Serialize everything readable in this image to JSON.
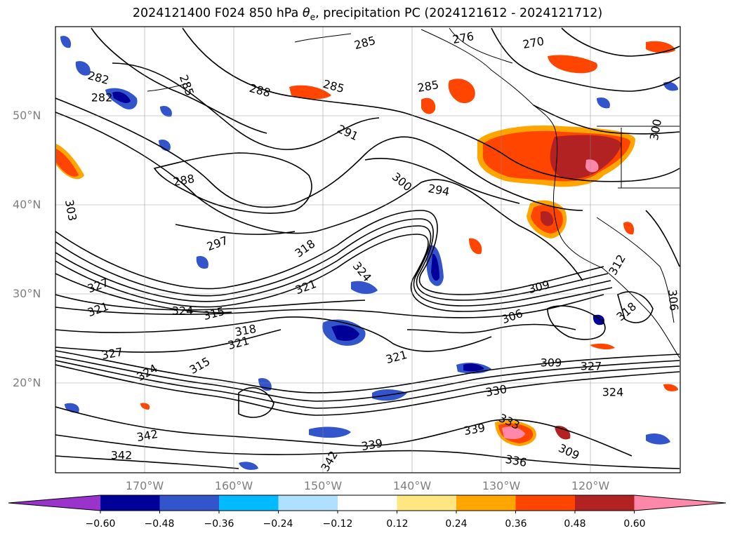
{
  "title": {
    "prefix": "2024121400 F024 850 hPa ",
    "theta": "θ",
    "theta_sub": "e",
    "suffix": ", precipitation PC (2024121612 - 2024121712)"
  },
  "lat_labels": [
    "50°N",
    "40°N",
    "30°N",
    "20°N"
  ],
  "lon_labels": [
    "170°W",
    "160°W",
    "150°W",
    "140°W",
    "130°W",
    "120°W"
  ],
  "contour_labels": [
    "276",
    "270",
    "282",
    "282",
    "285",
    "285",
    "285",
    "285",
    "288",
    "288",
    "291",
    "294",
    "300",
    "300",
    "303",
    "297",
    "318",
    "324",
    "321",
    "327",
    "321",
    "324",
    "315",
    "318",
    "321",
    "327",
    "324",
    "315",
    "321",
    "318",
    "309",
    "306",
    "309",
    "327",
    "324",
    "330",
    "333",
    "339",
    "339",
    "342",
    "342",
    "342",
    "336",
    "309",
    "306",
    "312"
  ],
  "colorbar": {
    "ticks": [
      "−0.60",
      "−0.48",
      "−0.36",
      "−0.24",
      "−0.12",
      "0.12",
      "0.24",
      "0.36",
      "0.48",
      "0.60"
    ],
    "colors": [
      "#9933cc",
      "#000099",
      "#3355cc",
      "#00bbff",
      "#b0e0ff",
      "#ffffff",
      "#ffe680",
      "#ffa500",
      "#ff4500",
      "#b22222",
      "#ff88aa"
    ]
  }
}
